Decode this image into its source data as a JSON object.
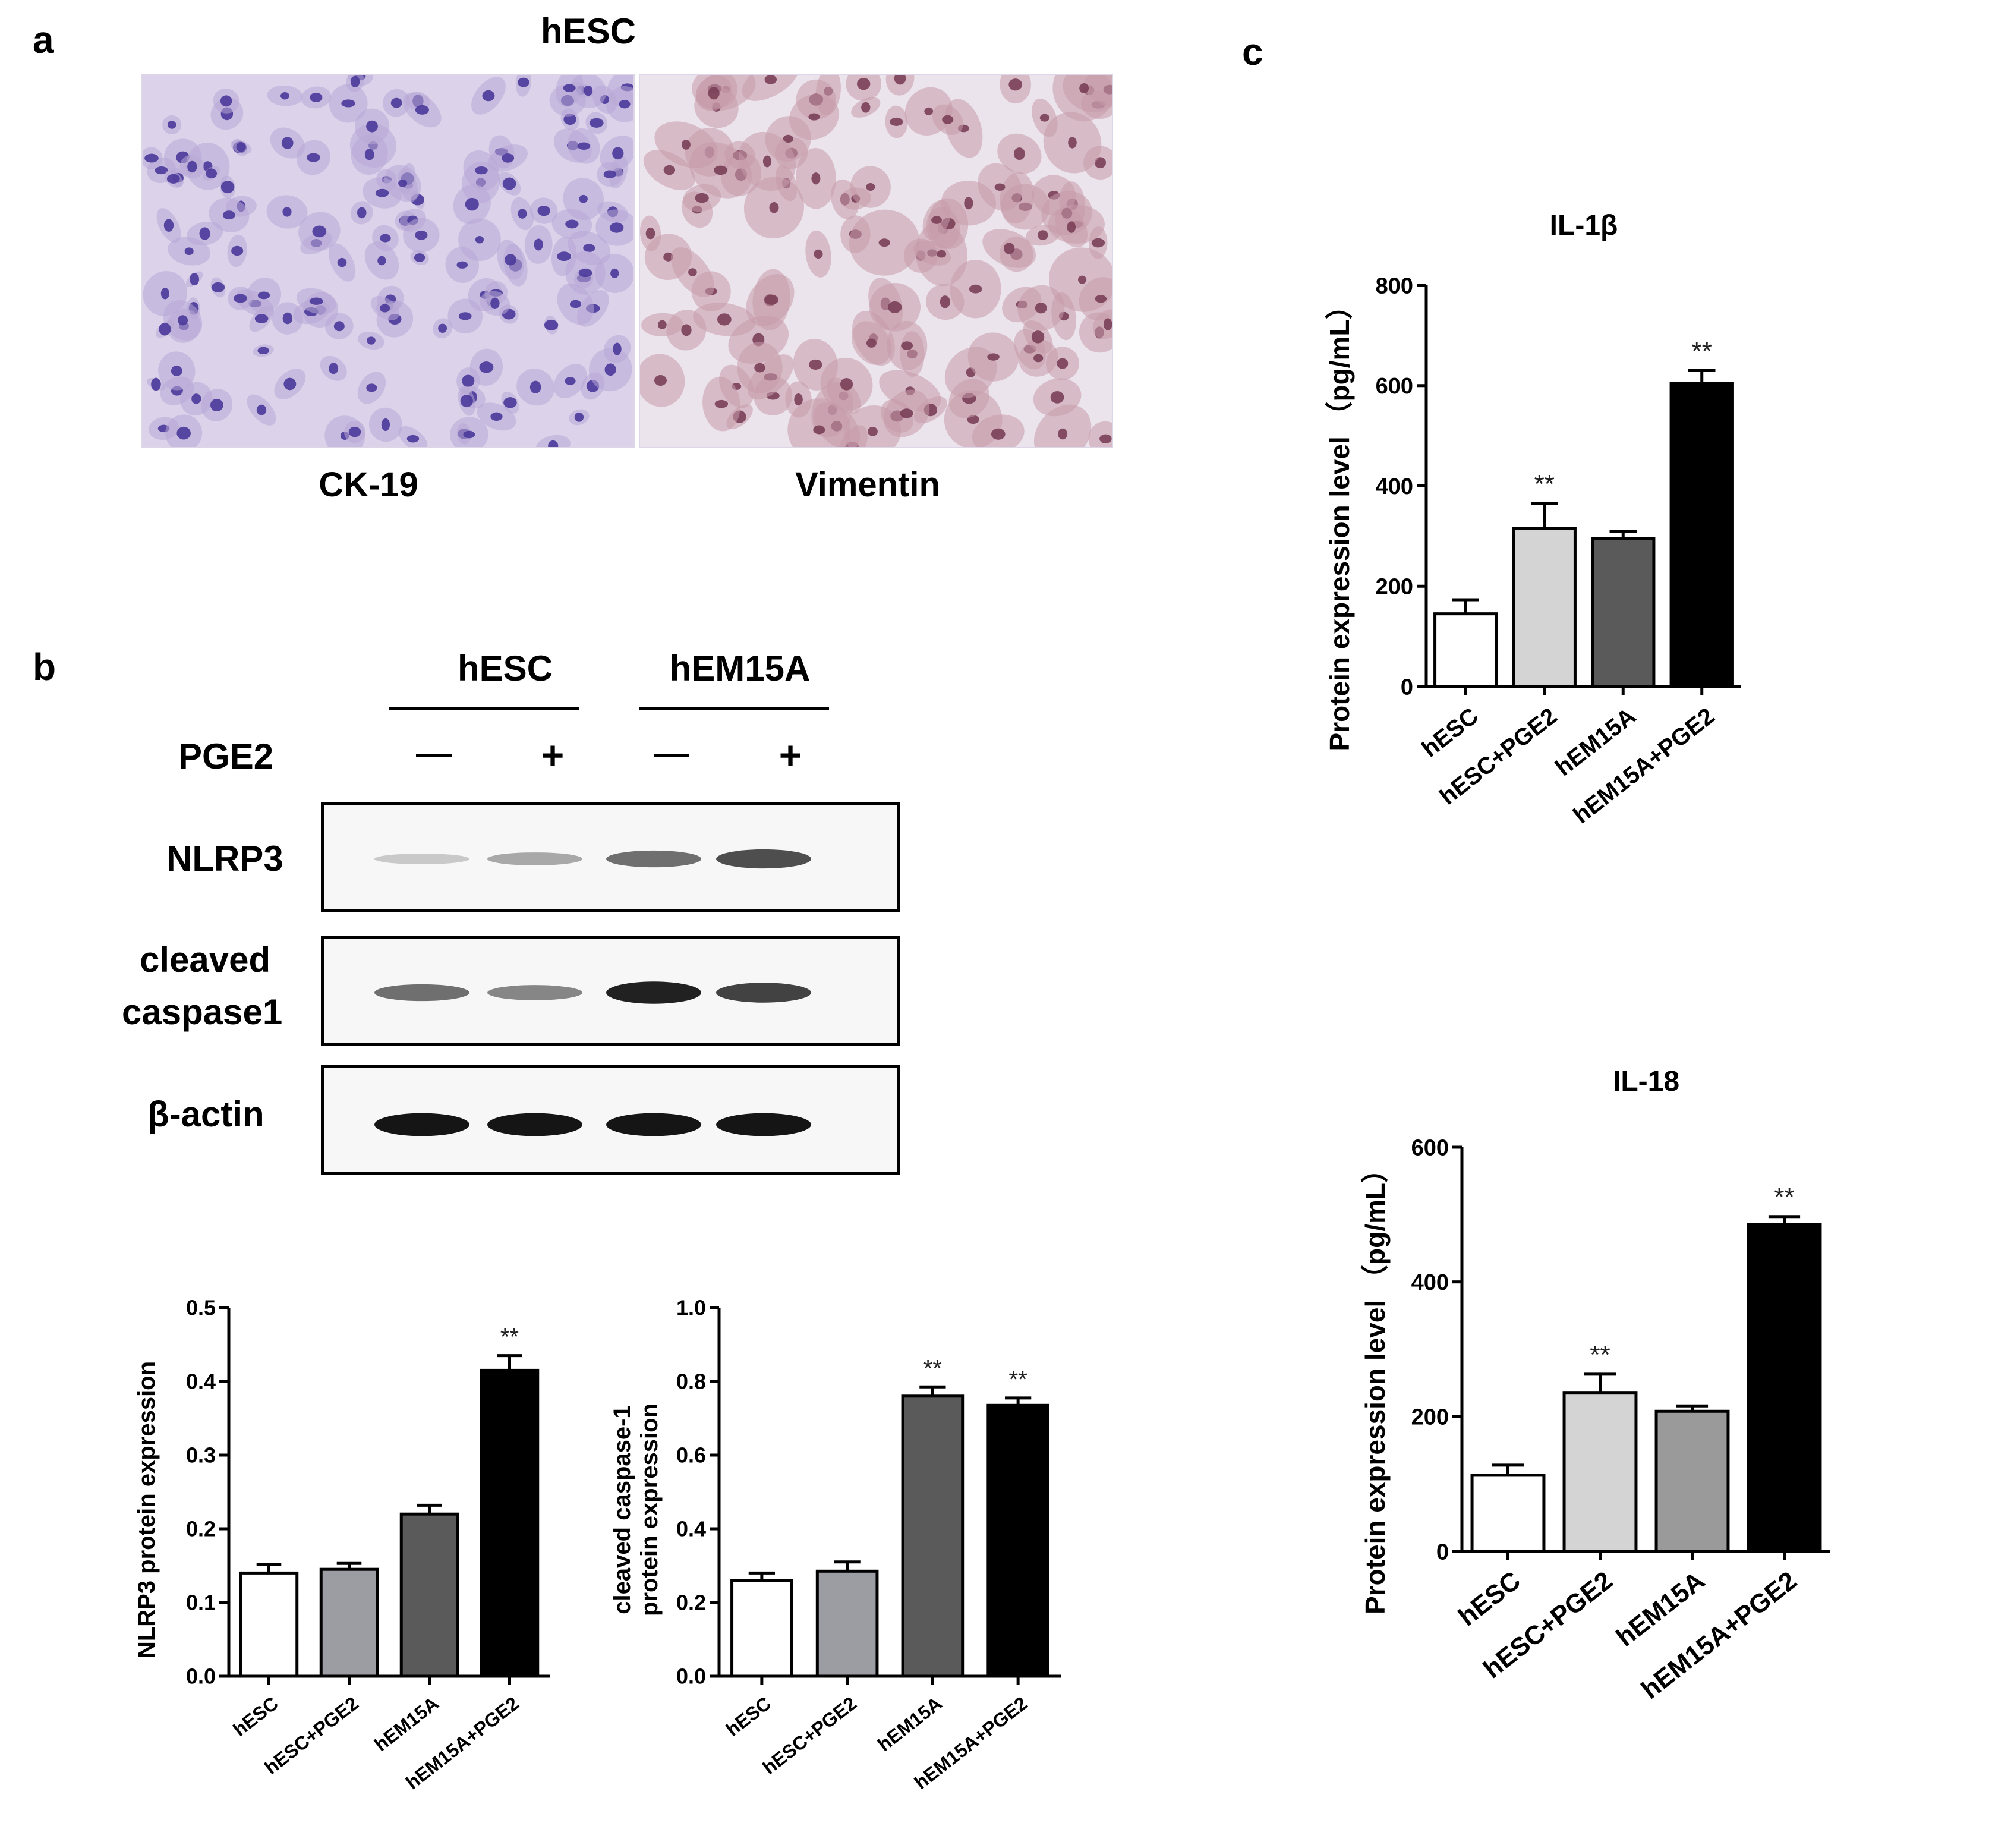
{
  "panels": {
    "a": {
      "label": "a",
      "title": "hESC",
      "images": [
        {
          "stain": "CK-19",
          "palette": {
            "bg": "#dcd3ea",
            "cytoplasm": "#b7a7d6",
            "nucleus": "#4a3a9a"
          }
        },
        {
          "stain": "Vimentin",
          "palette": {
            "bg": "#ece4ec",
            "cytoplasm": "#c79aa9",
            "nucleus": "#7a3f56"
          }
        }
      ]
    },
    "b": {
      "label": "b",
      "blot": {
        "groups": [
          "hESC",
          "hEM15A"
        ],
        "treatment_label": "PGE2",
        "lane_signs": [
          "—",
          "+",
          "—",
          "+"
        ],
        "rows": [
          {
            "label_lines": [
              "NLRP3"
            ],
            "band_intensity": [
              0.15,
              0.3,
              0.55,
              0.7
            ]
          },
          {
            "label_lines": [
              "cleaved",
              "caspase1"
            ],
            "band_intensity": [
              0.55,
              0.45,
              0.9,
              0.75
            ]
          },
          {
            "label_lines": [
              "β-actin"
            ],
            "band_intensity": [
              0.95,
              0.95,
              0.95,
              0.95
            ]
          }
        ]
      }
    },
    "c": {
      "label": "c"
    }
  },
  "chart_data": [
    {
      "id": "nlrp3",
      "type": "bar",
      "title": "",
      "ylabel": "NLRP3 protein expression",
      "categories": [
        "hESC",
        "hESC+PGE2",
        "hEM15A",
        "hEM15A+PGE2"
      ],
      "values": [
        0.14,
        0.145,
        0.22,
        0.415
      ],
      "errors": [
        0.012,
        0.008,
        0.012,
        0.02
      ],
      "significance": [
        "",
        "",
        "",
        "**"
      ],
      "ylim": [
        0,
        0.5
      ],
      "yticks": [
        "0.0",
        "0.1",
        "0.2",
        "0.3",
        "0.4",
        "0.5"
      ],
      "bar_colors": [
        "#ffffff",
        "#9c9ca3",
        "#5a5a5a",
        "#000000"
      ],
      "grid": false
    },
    {
      "id": "caspase",
      "type": "bar",
      "title": "",
      "ylabel": [
        "cleaved caspase-1",
        "protein expression"
      ],
      "categories": [
        "hESC",
        "hESC+PGE2",
        "hEM15A",
        "hEM15A+PGE2"
      ],
      "values": [
        0.26,
        0.285,
        0.76,
        0.735
      ],
      "errors": [
        0.02,
        0.025,
        0.025,
        0.02
      ],
      "significance": [
        "",
        "",
        "**",
        "**"
      ],
      "ylim": [
        0,
        1.0
      ],
      "yticks": [
        "0.0",
        "0.2",
        "0.4",
        "0.6",
        "0.8",
        "1.0"
      ],
      "bar_colors": [
        "#ffffff",
        "#9c9ca3",
        "#5a5a5a",
        "#000000"
      ],
      "grid": false
    },
    {
      "id": "il1b",
      "type": "bar",
      "title": "IL-1β",
      "ylabel": "Protein expression level （pg/mL）",
      "categories": [
        "hESC",
        "hESC+PGE2",
        "hEM15A",
        "hEM15A+PGE2"
      ],
      "values": [
        145,
        315,
        295,
        605
      ],
      "errors": [
        28,
        50,
        15,
        25
      ],
      "significance": [
        "",
        "**",
        "",
        "**"
      ],
      "ylim": [
        0,
        800
      ],
      "yticks": [
        "0",
        "200",
        "400",
        "600",
        "800"
      ],
      "bar_colors": [
        "#ffffff",
        "#d4d4d4",
        "#5a5a5a",
        "#000000"
      ],
      "grid": false
    },
    {
      "id": "il18",
      "type": "bar",
      "title": "IL-18",
      "ylabel": "Protein expression level （pg/mL）",
      "categories": [
        "hESC",
        "hESC+PGE2",
        "hEM15A",
        "hEM15A+PGE2"
      ],
      "values": [
        113,
        235,
        208,
        485
      ],
      "errors": [
        15,
        28,
        8,
        12
      ],
      "significance": [
        "",
        "**",
        "",
        "**"
      ],
      "ylim": [
        0,
        600
      ],
      "yticks": [
        "0",
        "200",
        "400",
        "600"
      ],
      "bar_colors": [
        "#ffffff",
        "#d4d4d4",
        "#9a9a9a",
        "#000000"
      ],
      "grid": false
    }
  ]
}
